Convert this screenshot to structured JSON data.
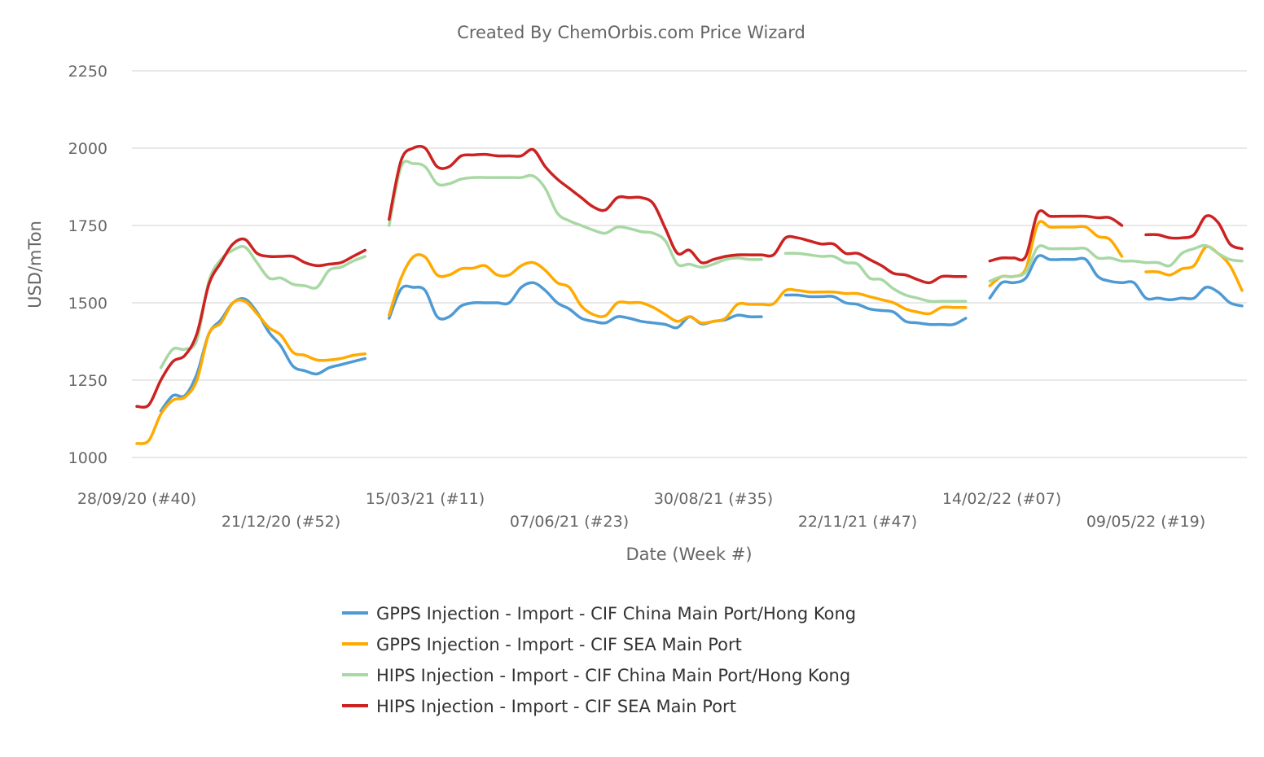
{
  "chart_data": {
    "type": "line",
    "title": "Created By ChemOrbis.com Price Wizard",
    "xlabel": "Date (Week #)",
    "ylabel": "USD/mTon",
    "ylim": [
      1000,
      2250
    ],
    "yticks": [
      1000,
      1250,
      1500,
      1750,
      2000,
      2250
    ],
    "xtick_labels": [
      "28/09/20 (#40)",
      "21/12/20 (#52)",
      "15/03/21 (#11)",
      "07/06/21 (#23)",
      "30/08/21 (#35)",
      "22/11/21 (#47)",
      "14/02/22 (#07)",
      "09/05/22 (#19)"
    ],
    "xtick_interval_weeks": 12,
    "grid": true,
    "legend": "bottom",
    "series": [
      {
        "name": "GPPS Injection - Import - CIF China Main Port/Hong Kong",
        "color": "#4e9ad4",
        "values": [
          null,
          null,
          1150,
          1200,
          1200,
          1270,
          1400,
          1445,
          1500,
          1512,
          1470,
          1405,
          1360,
          1295,
          1280,
          1270,
          1290,
          1300,
          1310,
          1320,
          null,
          1450,
          1545,
          1550,
          1540,
          1455,
          1455,
          1490,
          1500,
          1500,
          1500,
          1500,
          1550,
          1565,
          1540,
          1500,
          1480,
          1450,
          1440,
          1435,
          1455,
          1450,
          1440,
          1435,
          1430,
          1420,
          1455,
          1432,
          1440,
          1445,
          1460,
          1455,
          1455,
          null,
          1525,
          1525,
          1520,
          1520,
          1520,
          1500,
          1495,
          1480,
          1475,
          1470,
          1440,
          1435,
          1430,
          1430,
          1430,
          1450,
          null,
          1515,
          1565,
          1565,
          1580,
          1650,
          1640,
          1640,
          1640,
          1640,
          1585,
          1570,
          1565,
          1565,
          1515,
          1515,
          1510,
          1515,
          1515,
          1550,
          1535,
          1500,
          1490
        ]
      },
      {
        "name": "GPPS Injection - Import - CIF SEA Main Port",
        "color": "#ffaa00",
        "values": [
          1045,
          1055,
          1140,
          1185,
          1195,
          1250,
          1400,
          1435,
          1500,
          1505,
          1465,
          1420,
          1395,
          1340,
          1330,
          1315,
          1315,
          1320,
          1330,
          1335,
          null,
          1460,
          1580,
          1648,
          1648,
          1590,
          1590,
          1610,
          1612,
          1620,
          1590,
          1590,
          1620,
          1630,
          1605,
          1565,
          1550,
          1490,
          1462,
          1458,
          1500,
          1500,
          1500,
          1485,
          1462,
          1440,
          1455,
          1435,
          1440,
          1450,
          1495,
          1495,
          1495,
          1497,
          1540,
          1540,
          1535,
          1535,
          1535,
          1530,
          1530,
          1520,
          1510,
          1500,
          1480,
          1470,
          1465,
          1485,
          1485,
          1485,
          null,
          1555,
          1585,
          1585,
          1610,
          1755,
          1745,
          1745,
          1745,
          1745,
          1715,
          1705,
          1650,
          null,
          1600,
          1600,
          1590,
          1610,
          1620,
          1680,
          1660,
          1620,
          1540
        ]
      },
      {
        "name": "HIPS Injection - Import - CIF China Main Port/Hong Kong",
        "color": "#a8d8a4",
        "values": [
          null,
          null,
          1290,
          1350,
          1350,
          1380,
          1570,
          1640,
          1670,
          1680,
          1630,
          1580,
          1580,
          1560,
          1555,
          1550,
          1605,
          1615,
          1635,
          1650,
          null,
          1750,
          1940,
          1950,
          1940,
          1885,
          1885,
          1900,
          1905,
          1905,
          1905,
          1905,
          1905,
          1910,
          1870,
          1790,
          1765,
          1750,
          1735,
          1725,
          1745,
          1740,
          1730,
          1725,
          1700,
          1625,
          1625,
          1615,
          1625,
          1640,
          1645,
          1640,
          1640,
          null,
          1660,
          1660,
          1655,
          1650,
          1650,
          1630,
          1625,
          1580,
          1575,
          1545,
          1525,
          1515,
          1505,
          1505,
          1505,
          1505,
          null,
          1570,
          1585,
          1585,
          1600,
          1680,
          1675,
          1675,
          1675,
          1675,
          1645,
          1645,
          1635,
          1635,
          1630,
          1630,
          1620,
          1660,
          1675,
          1685,
          1660,
          1640,
          1635
        ]
      },
      {
        "name": "HIPS Injection - Import - CIF SEA Main Port",
        "color": "#cc2222",
        "values": [
          1165,
          1170,
          1250,
          1310,
          1330,
          1400,
          1560,
          1630,
          1690,
          1705,
          1660,
          1650,
          1650,
          1650,
          1630,
          1620,
          1625,
          1630,
          1650,
          1670,
          null,
          1770,
          1960,
          2000,
          2000,
          1940,
          1940,
          1975,
          1978,
          1980,
          1975,
          1975,
          1975,
          1995,
          1940,
          1900,
          1870,
          1840,
          1810,
          1800,
          1840,
          1840,
          1840,
          1820,
          1740,
          1660,
          1670,
          1630,
          1640,
          1650,
          1655,
          1655,
          1655,
          1655,
          1710,
          1710,
          1700,
          1690,
          1690,
          1660,
          1660,
          1640,
          1620,
          1595,
          1590,
          1575,
          1565,
          1585,
          1585,
          1585,
          null,
          1635,
          1645,
          1645,
          1650,
          1790,
          1780,
          1780,
          1780,
          1780,
          1775,
          1775,
          1750,
          null,
          1720,
          1720,
          1710,
          1710,
          1720,
          1780,
          1760,
          1690,
          1675
        ]
      }
    ]
  }
}
